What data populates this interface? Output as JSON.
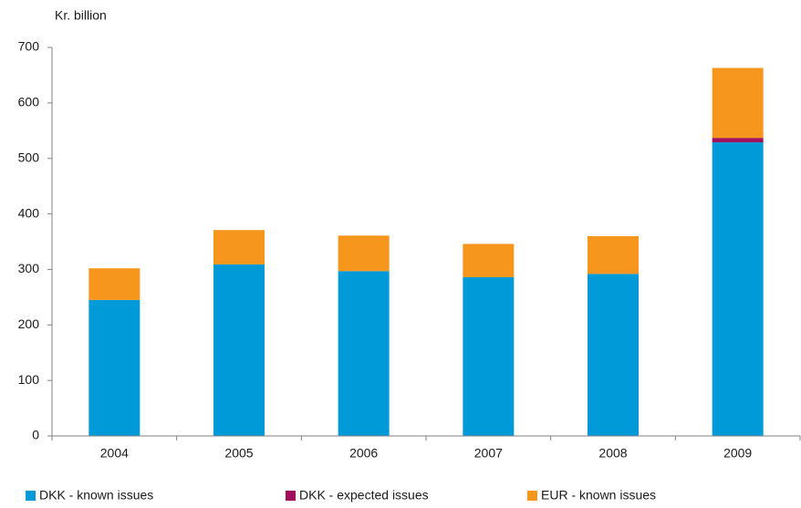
{
  "chart_data": {
    "type": "bar",
    "stacked": true,
    "y_label": "Kr. billion",
    "categories": [
      "2004",
      "2005",
      "2006",
      "2007",
      "2008",
      "2009"
    ],
    "series": [
      {
        "name": "DKK - known issues",
        "color": "#009ad8",
        "values": [
          245,
          309,
          297,
          286,
          292,
          529
        ]
      },
      {
        "name": "DKK - expected issues",
        "color": "#a0105c",
        "values": [
          0,
          0,
          0,
          0,
          0,
          8
        ]
      },
      {
        "name": "EUR - known issues",
        "color": "#f7961d",
        "values": [
          57,
          62,
          64,
          60,
          68,
          126
        ]
      }
    ],
    "ylim": [
      0,
      700
    ],
    "yticks": [
      0,
      100,
      200,
      300,
      400,
      500,
      600,
      700
    ],
    "grid": false,
    "legend": "bottom"
  }
}
